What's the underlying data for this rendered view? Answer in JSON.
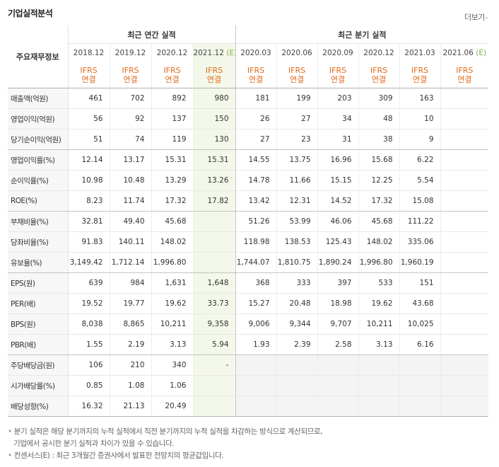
{
  "title": "기업실적분석",
  "more_label": "더보기",
  "corner_label": "주요재무정보",
  "groups": {
    "annual": "최근 연간 실적",
    "quarterly": "최근 분기 실적"
  },
  "periods": [
    "2018.12",
    "2019.12",
    "2020.12",
    "2021.12",
    "2020.03",
    "2020.06",
    "2020.09",
    "2020.12",
    "2021.03",
    "2021.06"
  ],
  "estimate_mark": "(E)",
  "ifrs_label": "IFRS",
  "consolidated_label": "연결",
  "rows": [
    {
      "label": "매출액(억원)",
      "values": [
        "461",
        "702",
        "892",
        "980",
        "181",
        "199",
        "203",
        "309",
        "163",
        ""
      ]
    },
    {
      "label": "영업이익(억원)",
      "values": [
        "56",
        "92",
        "137",
        "150",
        "26",
        "27",
        "34",
        "48",
        "10",
        ""
      ]
    },
    {
      "label": "당기순이익(억원)",
      "values": [
        "51",
        "74",
        "119",
        "130",
        "27",
        "23",
        "31",
        "38",
        "9",
        ""
      ]
    },
    {
      "label": "영업이익률(%)",
      "values": [
        "12.14",
        "13.17",
        "15.31",
        "15.31",
        "14.55",
        "13.75",
        "16.96",
        "15.68",
        "6.22",
        ""
      ]
    },
    {
      "label": "순이익률(%)",
      "values": [
        "10.98",
        "10.48",
        "13.29",
        "13.26",
        "14.78",
        "11.66",
        "15.15",
        "12.25",
        "5.54",
        ""
      ]
    },
    {
      "label": "ROE(%)",
      "values": [
        "8.23",
        "11.74",
        "17.32",
        "17.82",
        "13.42",
        "12.31",
        "14.52",
        "17.32",
        "15.08",
        ""
      ]
    },
    {
      "label": "부채비율(%)",
      "values": [
        "32.81",
        "49.40",
        "45.68",
        "",
        "51.26",
        "53.99",
        "46.06",
        "45.68",
        "111.22",
        ""
      ]
    },
    {
      "label": "당좌비율(%)",
      "values": [
        "91.83",
        "140.11",
        "148.02",
        "",
        "118.98",
        "138.53",
        "125.43",
        "148.02",
        "335.06",
        ""
      ]
    },
    {
      "label": "유보율(%)",
      "values": [
        "3,149.42",
        "1,712.14",
        "1,996.80",
        "",
        "1,744.07",
        "1,810.75",
        "1,890.24",
        "1,996.80",
        "1,960.19",
        ""
      ]
    },
    {
      "label": "EPS(원)",
      "values": [
        "639",
        "984",
        "1,631",
        "1,648",
        "368",
        "333",
        "397",
        "533",
        "151",
        ""
      ]
    },
    {
      "label": "PER(배)",
      "values": [
        "19.52",
        "19.77",
        "19.62",
        "33.73",
        "15.27",
        "20.48",
        "18.98",
        "19.62",
        "43.68",
        ""
      ]
    },
    {
      "label": "BPS(원)",
      "values": [
        "8,038",
        "8,865",
        "10,211",
        "9,358",
        "9,006",
        "9,344",
        "9,707",
        "10,211",
        "10,025",
        ""
      ]
    },
    {
      "label": "PBR(배)",
      "values": [
        "1.55",
        "2.19",
        "3.13",
        "5.94",
        "1.93",
        "2.39",
        "2.58",
        "3.13",
        "6.16",
        ""
      ]
    },
    {
      "label": "주당배당금(원)",
      "values": [
        "106",
        "210",
        "340",
        "-",
        "",
        "",
        "",
        "",
        "",
        ""
      ]
    },
    {
      "label": "시가배당률(%)",
      "values": [
        "0.85",
        "1.08",
        "1.06",
        "",
        "",
        "",
        "",
        "",
        "",
        ""
      ]
    },
    {
      "label": "배당성향(%)",
      "values": [
        "16.32",
        "21.13",
        "20.49",
        "",
        "",
        "",
        "",
        "",
        "",
        ""
      ]
    }
  ],
  "notes": [
    "분기 실적은 해당 분기까지의 누적 실적에서 직전 분기까지의 누적 실적을 차감하는 방식으로 계산되므로,",
    "기업에서 공시한 분기 실적과 차이가 있을 수 있습니다.",
    "컨센서스(E) : 최근 3개월간 증권사에서 발표한 전망치의 평균값입니다."
  ]
}
